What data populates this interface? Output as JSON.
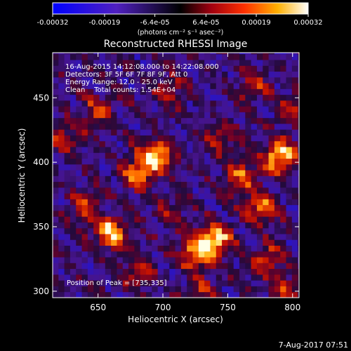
{
  "chart_data": {
    "type": "heatmap",
    "title": "Reconstructed RHESSI Image",
    "xlabel": "Heliocentric X (arcsec)",
    "ylabel": "Heliocentric Y (arcsec)",
    "x_ticks": [
      "650",
      "700",
      "750",
      "800"
    ],
    "y_ticks": [
      "300",
      "350",
      "400",
      "450"
    ],
    "xlim": [
      615,
      805
    ],
    "ylim": [
      295,
      485
    ],
    "colorbar": {
      "ticks": [
        "-0.00032",
        "-0.00019",
        "-6.4e-05",
        "6.4e-05",
        "0.00019",
        "0.00032"
      ],
      "unit_label": "(photons cm⁻² s⁻¹ asec⁻²)",
      "range": [
        -0.00032,
        0.00032
      ]
    },
    "annotations": [
      "16-Aug-2015 14:12:08.000 to 14:22:08.000",
      "Detectors: 3F 5F 6F 7F 8F 9F, Att 0",
      "Energy Range: 12.0 - 25.0 keV",
      "Clean    Total counts: 1.54E+04"
    ],
    "peak_text": "Position of Peak = [735,335]",
    "peak_position": [
      735,
      335
    ],
    "blobs": [
      {
        "x": 695,
        "y": 405,
        "v": 1.0
      },
      {
        "x": 680,
        "y": 392,
        "v": 0.7
      },
      {
        "x": 790,
        "y": 405,
        "v": 1.0
      },
      {
        "x": 740,
        "y": 340,
        "v": 1.0
      },
      {
        "x": 725,
        "y": 330,
        "v": 0.8
      },
      {
        "x": 660,
        "y": 345,
        "v": 0.9
      },
      {
        "x": 640,
        "y": 365,
        "v": 0.5
      },
      {
        "x": 760,
        "y": 390,
        "v": 0.6
      },
      {
        "x": 745,
        "y": 420,
        "v": 0.45
      },
      {
        "x": 775,
        "y": 365,
        "v": 0.7
      },
      {
        "x": 625,
        "y": 420,
        "v": 0.45
      },
      {
        "x": 650,
        "y": 440,
        "v": 0.5
      },
      {
        "x": 705,
        "y": 455,
        "v": 0.4
      },
      {
        "x": 770,
        "y": 460,
        "v": 0.45
      },
      {
        "x": 780,
        "y": 325,
        "v": 0.55
      },
      {
        "x": 795,
        "y": 300,
        "v": 0.5
      },
      {
        "x": 680,
        "y": 315,
        "v": 0.4
      },
      {
        "x": 705,
        "y": 360,
        "v": 0.35
      },
      {
        "x": 800,
        "y": 440,
        "v": 0.4
      },
      {
        "x": 730,
        "y": 300,
        "v": 0.35
      }
    ]
  },
  "footer": {
    "timestamp": "7-Aug-2017 07:51"
  }
}
